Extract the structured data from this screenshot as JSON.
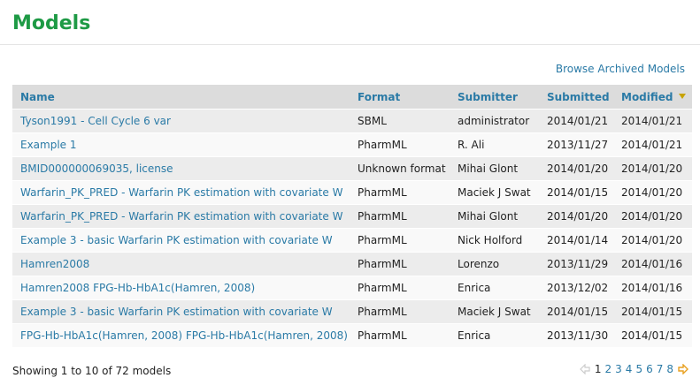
{
  "header": {
    "title": "Models"
  },
  "links": {
    "browse_archived": "Browse Archived Models"
  },
  "table": {
    "columns": {
      "name": "Name",
      "format": "Format",
      "submitter": "Submitter",
      "submitted": "Submitted",
      "modified": "Modified"
    },
    "sorted_by": "modified",
    "sort_direction": "descending",
    "rows": [
      {
        "name": "Tyson1991 - Cell Cycle 6 var",
        "format": "SBML",
        "submitter": "administrator",
        "submitted": "2014/01/21",
        "modified": "2014/01/21"
      },
      {
        "name": "Example 1",
        "format": "PharmML",
        "submitter": "R. Ali",
        "submitted": "2013/11/27",
        "modified": "2014/01/21"
      },
      {
        "name": "BMID000000069035, license",
        "format": "Unknown format",
        "submitter": "Mihai Glont",
        "submitted": "2014/01/20",
        "modified": "2014/01/20"
      },
      {
        "name": "Warfarin_PK_PRED - Warfarin PK estimation with covariate W",
        "format": "PharmML",
        "submitter": "Maciek J Swat",
        "submitted": "2014/01/15",
        "modified": "2014/01/20"
      },
      {
        "name": "Warfarin_PK_PRED - Warfarin PK estimation with covariate W",
        "format": "PharmML",
        "submitter": "Mihai Glont",
        "submitted": "2014/01/20",
        "modified": "2014/01/20"
      },
      {
        "name": "Example 3 - basic Warfarin PK estimation with covariate W",
        "format": "PharmML",
        "submitter": "Nick Holford",
        "submitted": "2014/01/14",
        "modified": "2014/01/20"
      },
      {
        "name": "Hamren2008",
        "format": "PharmML",
        "submitter": "Lorenzo",
        "submitted": "2013/11/29",
        "modified": "2014/01/16"
      },
      {
        "name": "Hamren2008 FPG-Hb-HbA1c(Hamren, 2008)",
        "format": "PharmML",
        "submitter": "Enrica",
        "submitted": "2013/12/02",
        "modified": "2014/01/16"
      },
      {
        "name": "Example 3 - basic Warfarin PK estimation with covariate W",
        "format": "PharmML",
        "submitter": "Maciek J Swat",
        "submitted": "2014/01/15",
        "modified": "2014/01/15"
      },
      {
        "name": "FPG-Hb-HbA1c(Hamren, 2008) FPG-Hb-HbA1c(Hamren, 2008)",
        "format": "PharmML",
        "submitter": "Enrica",
        "submitted": "2013/11/30",
        "modified": "2014/01/15"
      }
    ]
  },
  "footer": {
    "summary": "Showing 1 to 10 of 72 models",
    "pages": [
      "1",
      "2",
      "3",
      "4",
      "5",
      "6",
      "7",
      "8"
    ],
    "current_page": "1",
    "prev_icon": "arrow-left-icon",
    "next_icon": "arrow-right-icon"
  },
  "colors": {
    "title": "#1e9a45",
    "link": "#2a7aa6",
    "header_bg": "#dcdcdc",
    "row_odd": "#ececec",
    "row_even": "#f9f9f9",
    "next_arrow": "#e8a020",
    "prev_arrow": "#cccccc"
  }
}
